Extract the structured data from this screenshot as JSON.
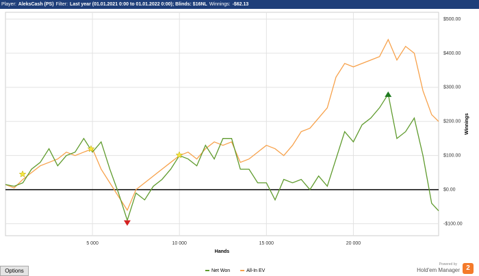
{
  "header": [
    "Player:",
    "AleksCash (PS)",
    "Filter:",
    "Last year (01.01.2021 0:00 to 01.01.2022 0:00); Blinds: $16NL",
    "Winnings:",
    "-$62.13"
  ],
  "ui": {
    "options": "Options",
    "powered_by": "Powered by",
    "brand": "Hold'em Manager",
    "brand_version": "2"
  },
  "chart_data": {
    "type": "line",
    "xlabel": "Hands",
    "ylabel": "Winnings",
    "grid": true,
    "legend": "bottom",
    "xlim": [
      0,
      24900
    ],
    "ylim": [
      -135,
      520
    ],
    "xticks": [
      {
        "value": 5000,
        "label": "5 000"
      },
      {
        "value": 10000,
        "label": "10 000"
      },
      {
        "value": 15000,
        "label": "15 000"
      },
      {
        "value": 20000,
        "label": "20 000"
      }
    ],
    "yticks": [
      {
        "value": -100,
        "label": "-$100.00"
      },
      {
        "value": 0,
        "label": "$0.00"
      },
      {
        "value": 100,
        "label": "$100.00"
      },
      {
        "value": 200,
        "label": "$200.00"
      },
      {
        "value": 300,
        "label": "$300.00"
      },
      {
        "value": 400,
        "label": "$400.00"
      },
      {
        "value": 500,
        "label": "$500.00"
      }
    ],
    "x": [
      0,
      500,
      1000,
      1500,
      2000,
      2500,
      3000,
      3500,
      4000,
      4500,
      5000,
      5500,
      6000,
      6500,
      7000,
      7500,
      8000,
      8500,
      9000,
      9500,
      10000,
      10500,
      11000,
      11500,
      12000,
      12500,
      13000,
      13500,
      14000,
      14500,
      15000,
      15500,
      16000,
      16500,
      17000,
      17500,
      18000,
      18500,
      19000,
      19500,
      20000,
      20500,
      21000,
      21500,
      22000,
      22500,
      23000,
      23500,
      24000,
      24500,
      24900
    ],
    "series": [
      {
        "name": "Net Won",
        "color": "#5e9a2c",
        "values": [
          15,
          10,
          20,
          60,
          80,
          120,
          70,
          100,
          110,
          150,
          110,
          140,
          60,
          -10,
          -90,
          -10,
          -30,
          10,
          30,
          60,
          100,
          90,
          70,
          130,
          90,
          150,
          150,
          60,
          60,
          20,
          20,
          -30,
          30,
          20,
          30,
          0,
          40,
          10,
          90,
          170,
          140,
          190,
          210,
          240,
          280,
          150,
          170,
          210,
          100,
          -40,
          -62
        ]
      },
      {
        "name": "All-In EV",
        "color": "#f7a14a",
        "values": [
          15,
          5,
          30,
          50,
          70,
          80,
          90,
          110,
          100,
          110,
          120,
          60,
          20,
          -20,
          -60,
          0,
          20,
          40,
          60,
          80,
          100,
          110,
          90,
          120,
          140,
          130,
          140,
          80,
          90,
          110,
          130,
          120,
          100,
          130,
          170,
          180,
          210,
          240,
          330,
          370,
          360,
          370,
          380,
          390,
          440,
          380,
          420,
          400,
          290,
          220,
          200
        ]
      }
    ]
  }
}
